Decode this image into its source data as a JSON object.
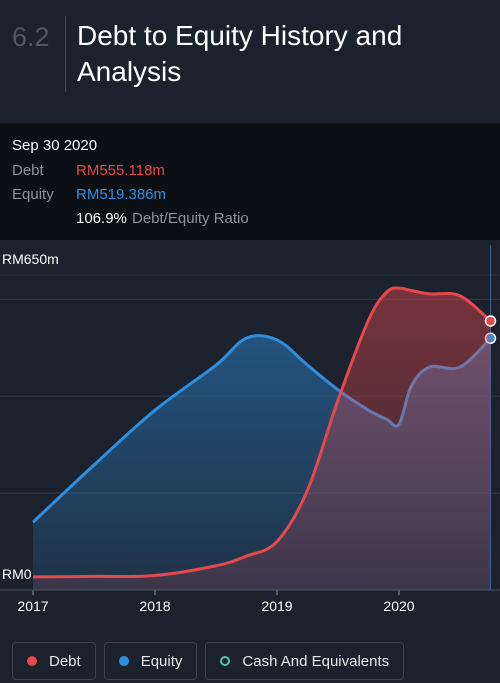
{
  "chart_data": {
    "type": "area",
    "section": "6.2",
    "title": "Debt to Equity History and Analysis",
    "tooltip": {
      "date": "Sep 30 2020",
      "rows": [
        {
          "label": "Debt",
          "value": "RM555.118m"
        },
        {
          "label": "Equity",
          "value": "RM519.386m"
        }
      ],
      "ratio": "106.9%",
      "ratio_label": "Debt/Equity Ratio"
    },
    "x": [
      2017,
      2017.5,
      2018,
      2018.5,
      2018.75,
      2019,
      2019.25,
      2019.5,
      2019.75,
      2019.9,
      2020,
      2020.1,
      2020.25,
      2020.5,
      2020.75
    ],
    "series": [
      {
        "name": "Debt",
        "color": "#e5484d",
        "values": [
          27,
          28,
          30,
          50,
          70,
          100,
          206,
          392,
          557,
          615,
          623,
          618,
          611,
          607,
          555.118
        ]
      },
      {
        "name": "Equity",
        "color": "#2e8fe0",
        "values": [
          140,
          258,
          371,
          464,
          520,
          516,
          464,
          413,
          371,
          352,
          342,
          420,
          460,
          460,
          519.386
        ]
      },
      {
        "name": "Cash And Equivalents",
        "color": "#4fc3b0",
        "values": [
          null,
          null,
          null,
          null,
          null,
          null,
          null,
          null,
          null,
          null,
          null,
          null,
          null,
          null,
          null
        ]
      }
    ],
    "xlim": [
      2017,
      2020.75
    ],
    "xticks": [
      2017,
      2018,
      2019,
      2020
    ],
    "ylim": [
      0,
      650
    ],
    "yticks": [
      {
        "value": 0,
        "label": "RM0"
      },
      {
        "value": 650,
        "label": "RM650m"
      }
    ],
    "ygrid": [
      200,
      400,
      600
    ]
  }
}
